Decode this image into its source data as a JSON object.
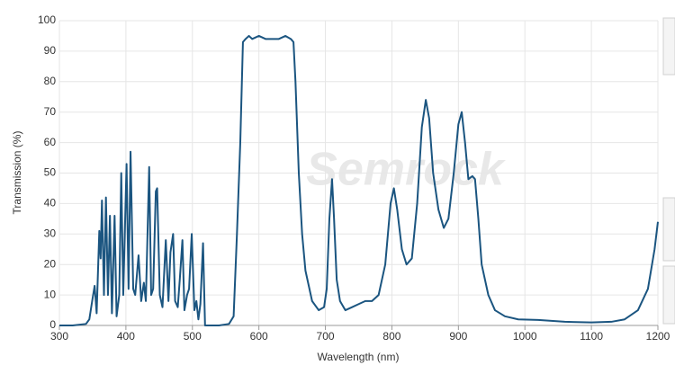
{
  "chart_data": {
    "type": "line",
    "watermark": "Semrock",
    "x_label": "Wavelength (nm)",
    "y_label": "Transmission (%)",
    "xlim": [
      300,
      1200
    ],
    "xticks": [
      300,
      400,
      500,
      600,
      700,
      800,
      900,
      1000,
      1100,
      1200
    ],
    "ylim": [
      0,
      100
    ],
    "yticks": [
      0,
      10,
      20,
      30,
      40,
      50,
      60,
      70,
      80,
      90,
      100
    ],
    "grid": true,
    "series": [
      {
        "color": "#1b5580",
        "x": [
          300,
          320,
          340,
          345,
          350,
          353,
          356,
          360,
          362,
          364,
          367,
          370,
          373,
          376,
          379,
          383,
          386,
          390,
          393,
          396,
          401,
          404,
          407,
          411,
          414,
          419,
          423,
          427,
          430,
          435,
          438,
          441,
          445,
          447,
          451,
          455,
          460,
          464,
          467,
          471,
          474,
          478,
          481,
          485,
          488,
          492,
          495,
          499,
          503,
          506,
          509,
          512,
          516,
          519,
          525,
          540,
          555,
          562,
          567,
          572,
          576,
          580,
          585,
          590,
          600,
          610,
          620,
          630,
          640,
          648,
          652,
          655,
          660,
          665,
          670,
          680,
          690,
          698,
          702,
          706,
          710,
          713,
          717,
          722,
          730,
          740,
          750,
          760,
          770,
          780,
          790,
          798,
          803,
          808,
          815,
          822,
          830,
          838,
          845,
          851,
          856,
          862,
          870,
          878,
          885,
          893,
          900,
          905,
          910,
          915,
          921,
          925,
          930,
          935,
          945,
          955,
          970,
          990,
          1020,
          1060,
          1100,
          1130,
          1150,
          1170,
          1185,
          1195,
          1200
        ],
        "values": [
          0,
          0,
          0.5,
          2,
          9,
          13,
          4,
          31,
          22,
          41,
          10,
          42,
          10,
          36,
          4,
          36,
          3,
          10,
          50,
          10,
          53,
          12,
          57,
          12,
          10,
          23,
          8,
          14,
          8,
          52,
          10,
          12,
          44,
          45,
          10,
          6,
          28,
          8,
          24,
          30,
          8,
          6,
          15,
          28,
          5,
          10,
          12,
          30,
          5,
          8,
          2,
          7,
          27,
          0,
          0,
          0,
          0.5,
          3,
          30,
          60,
          93,
          94,
          95,
          94,
          95,
          94,
          94,
          94,
          95,
          94,
          93,
          80,
          50,
          30,
          18,
          8,
          5,
          6,
          12,
          35,
          48,
          35,
          15,
          8,
          5,
          6,
          7,
          8,
          8,
          10,
          20,
          40,
          45,
          38,
          25,
          20,
          22,
          40,
          65,
          74,
          68,
          50,
          38,
          32,
          35,
          50,
          66,
          70,
          60,
          48,
          49,
          48,
          35,
          20,
          10,
          5,
          3,
          2,
          1.8,
          1.2,
          1,
          1.2,
          2,
          5,
          12,
          25,
          34
        ]
      }
    ]
  }
}
